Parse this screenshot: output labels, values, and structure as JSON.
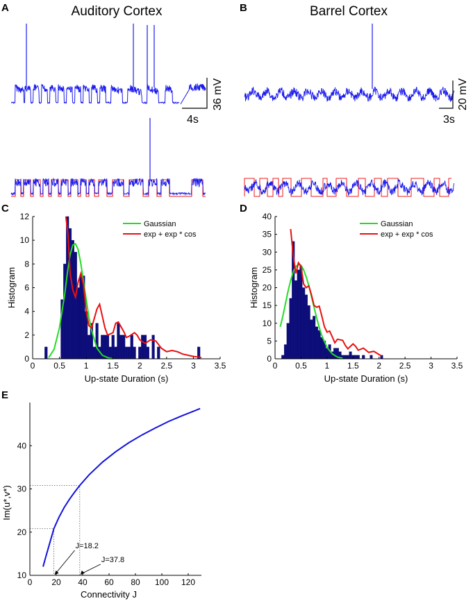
{
  "panels": {
    "A": {
      "label": "A",
      "title": "Auditory Cortex",
      "scale_time": "4s",
      "scale_volt": "36 mV"
    },
    "B": {
      "label": "B",
      "title": "Barrel Cortex",
      "scale_time": "3s",
      "scale_volt": "20 mV"
    }
  },
  "colors": {
    "trace": "#1a1aee",
    "thresh": "#ee1a1a",
    "bar": "#0d0d7a",
    "gauss": "#22dd22",
    "fit": "#e81010",
    "curve": "#1111dd"
  },
  "chart_data": [
    {
      "id": "C",
      "label": "C",
      "type": "bar",
      "xlabel": "Up-state Duration (s)",
      "ylabel": "Histogram",
      "xlim": [
        0,
        3.5
      ],
      "ylim": [
        0,
        12
      ],
      "xticks": [
        "0",
        "0.5",
        "1",
        "1.5",
        "2",
        "2.5",
        "3",
        "3.5"
      ],
      "yticks": [
        "0",
        "2",
        "4",
        "6",
        "8",
        "10",
        "12"
      ],
      "bin_width": 0.05,
      "bars": [
        [
          0.25,
          1
        ],
        [
          0.55,
          5
        ],
        [
          0.6,
          8
        ],
        [
          0.65,
          12
        ],
        [
          0.7,
          11
        ],
        [
          0.75,
          10
        ],
        [
          0.8,
          9
        ],
        [
          0.85,
          6
        ],
        [
          0.9,
          7
        ],
        [
          0.95,
          7
        ],
        [
          1.0,
          4
        ],
        [
          1.05,
          2
        ],
        [
          1.1,
          3
        ],
        [
          1.15,
          1
        ],
        [
          1.2,
          3
        ],
        [
          1.25,
          1
        ],
        [
          1.3,
          2
        ],
        [
          1.35,
          2
        ],
        [
          1.4,
          2
        ],
        [
          1.45,
          1
        ],
        [
          1.5,
          2
        ],
        [
          1.55,
          1
        ],
        [
          1.6,
          3
        ],
        [
          1.65,
          2
        ],
        [
          1.7,
          2
        ],
        [
          1.75,
          1
        ],
        [
          1.8,
          1
        ],
        [
          1.85,
          2
        ],
        [
          1.9,
          1
        ],
        [
          2.0,
          1
        ],
        [
          2.05,
          2
        ],
        [
          2.1,
          2
        ],
        [
          2.15,
          1
        ],
        [
          2.25,
          2
        ],
        [
          2.35,
          1
        ],
        [
          3.1,
          1
        ]
      ],
      "legend": [
        "Gaussian",
        "exp + exp * cos"
      ],
      "gaussian": {
        "x": [
          0.3,
          0.4,
          0.5,
          0.6,
          0.65,
          0.7,
          0.75,
          0.8,
          0.85,
          0.9,
          0.95,
          1.0,
          1.05,
          1.1,
          1.2,
          1.3,
          1.4,
          1.5
        ],
        "y": [
          0.1,
          0.8,
          2.6,
          5.5,
          7.3,
          8.8,
          9.6,
          9.7,
          9.2,
          8.0,
          6.5,
          5.0,
          3.5,
          2.4,
          0.9,
          0.3,
          0.1,
          0.0
        ]
      },
      "fit": {
        "x": [
          0.62,
          0.66,
          0.7,
          0.75,
          0.8,
          0.85,
          0.9,
          0.95,
          1.0,
          1.05,
          1.1,
          1.15,
          1.2,
          1.25,
          1.3,
          1.35,
          1.4,
          1.5,
          1.55,
          1.6,
          1.7,
          1.75,
          1.8,
          1.9,
          1.95,
          2.0,
          2.1,
          2.2,
          2.3,
          2.4,
          2.5,
          2.6,
          2.7,
          2.8,
          2.9,
          3.0,
          3.1,
          3.15
        ],
        "y": [
          12.0,
          10.5,
          7.2,
          5.8,
          5.2,
          6.5,
          7.2,
          6.2,
          4.0,
          2.8,
          2.6,
          3.4,
          4.2,
          4.6,
          3.6,
          2.6,
          2.0,
          2.2,
          3.0,
          3.1,
          2.3,
          1.8,
          1.9,
          2.2,
          2.0,
          1.6,
          1.3,
          1.6,
          1.5,
          0.9,
          0.6,
          0.7,
          0.6,
          0.4,
          0.3,
          0.2,
          0.15,
          0.1
        ]
      }
    },
    {
      "id": "D",
      "label": "D",
      "type": "bar",
      "xlabel": "Up-state Duration (s)",
      "ylabel": "Histogram",
      "xlim": [
        0,
        3.5
      ],
      "ylim": [
        0,
        40
      ],
      "xticks": [
        "0",
        "0.5",
        "1",
        "1.5",
        "2",
        "2.5",
        "3",
        "3.5"
      ],
      "yticks": [
        "0",
        "5",
        "10",
        "15",
        "20",
        "25",
        "30",
        "35",
        "40"
      ],
      "bin_width": 0.05,
      "bars": [
        [
          0.15,
          1
        ],
        [
          0.2,
          4
        ],
        [
          0.25,
          10
        ],
        [
          0.3,
          17
        ],
        [
          0.35,
          33
        ],
        [
          0.4,
          22
        ],
        [
          0.45,
          25
        ],
        [
          0.5,
          26
        ],
        [
          0.55,
          20
        ],
        [
          0.6,
          18
        ],
        [
          0.65,
          15
        ],
        [
          0.7,
          11
        ],
        [
          0.75,
          12
        ],
        [
          0.8,
          9
        ],
        [
          0.85,
          8
        ],
        [
          0.9,
          6
        ],
        [
          0.95,
          5
        ],
        [
          1.0,
          3
        ],
        [
          1.05,
          4
        ],
        [
          1.1,
          2
        ],
        [
          1.15,
          3
        ],
        [
          1.2,
          3
        ],
        [
          1.25,
          2
        ],
        [
          1.3,
          1
        ],
        [
          1.35,
          1
        ],
        [
          1.4,
          1
        ],
        [
          1.45,
          2
        ],
        [
          1.5,
          1
        ],
        [
          1.55,
          1
        ],
        [
          1.6,
          1
        ],
        [
          1.7,
          1
        ],
        [
          1.85,
          1
        ],
        [
          2.05,
          1
        ]
      ],
      "legend": [
        "Gaussian",
        "exp + exp * cos"
      ],
      "gaussian": {
        "x": [
          0.1,
          0.15,
          0.2,
          0.25,
          0.3,
          0.35,
          0.4,
          0.45,
          0.5,
          0.55,
          0.6,
          0.65,
          0.7,
          0.75,
          0.8,
          0.85,
          0.9,
          1.0,
          1.1,
          1.2,
          1.3
        ],
        "y": [
          9.0,
          12.0,
          15.5,
          19.0,
          22.0,
          24.5,
          26.0,
          26.5,
          26.3,
          25.0,
          23.0,
          20.5,
          17.5,
          14.5,
          11.5,
          8.8,
          6.5,
          3.2,
          1.4,
          0.5,
          0.15
        ]
      },
      "fit": {
        "x": [
          0.3,
          0.35,
          0.4,
          0.45,
          0.5,
          0.55,
          0.6,
          0.65,
          0.7,
          0.75,
          0.8,
          0.85,
          0.9,
          0.95,
          1.0,
          1.05,
          1.1,
          1.15,
          1.2,
          1.3,
          1.35,
          1.4,
          1.5,
          1.55,
          1.6,
          1.7,
          1.8,
          1.9,
          2.0,
          2.05
        ],
        "y": [
          36.5,
          29.0,
          24.0,
          27.0,
          26.0,
          21.0,
          20.0,
          20.5,
          18.0,
          15.0,
          14.5,
          14.8,
          12.0,
          9.0,
          7.5,
          7.8,
          6.2,
          4.5,
          5.5,
          5.2,
          3.8,
          2.8,
          4.2,
          3.5,
          2.4,
          3.0,
          1.8,
          2.1,
          1.2,
          0.8
        ]
      }
    },
    {
      "id": "E",
      "label": "E",
      "type": "line",
      "xlabel": "Connectivity J",
      "ylabel": "Im(u*,v*)",
      "xlim": [
        0,
        130
      ],
      "ylim": [
        10,
        50
      ],
      "xticks": [
        "0",
        "20",
        "40",
        "60",
        "80",
        "100",
        "120"
      ],
      "yticks": [
        "10",
        "20",
        "30",
        "40"
      ],
      "x": [
        10,
        12,
        15,
        18.2,
        22,
        26,
        30,
        34,
        37.8,
        45,
        55,
        65,
        75,
        85,
        95,
        105,
        115,
        125,
        129
      ],
      "y": [
        12,
        14.2,
        17.4,
        20.8,
        23.4,
        25.7,
        27.6,
        29.3,
        30.8,
        33.3,
        36.2,
        38.6,
        40.7,
        42.5,
        44.1,
        45.6,
        46.9,
        48.1,
        48.6
      ],
      "markers": [
        {
          "x": 18.2,
          "y": 20.8,
          "text": "J=18.2"
        },
        {
          "x": 37.8,
          "y": 30.8,
          "text": "J=37.8"
        }
      ]
    }
  ]
}
